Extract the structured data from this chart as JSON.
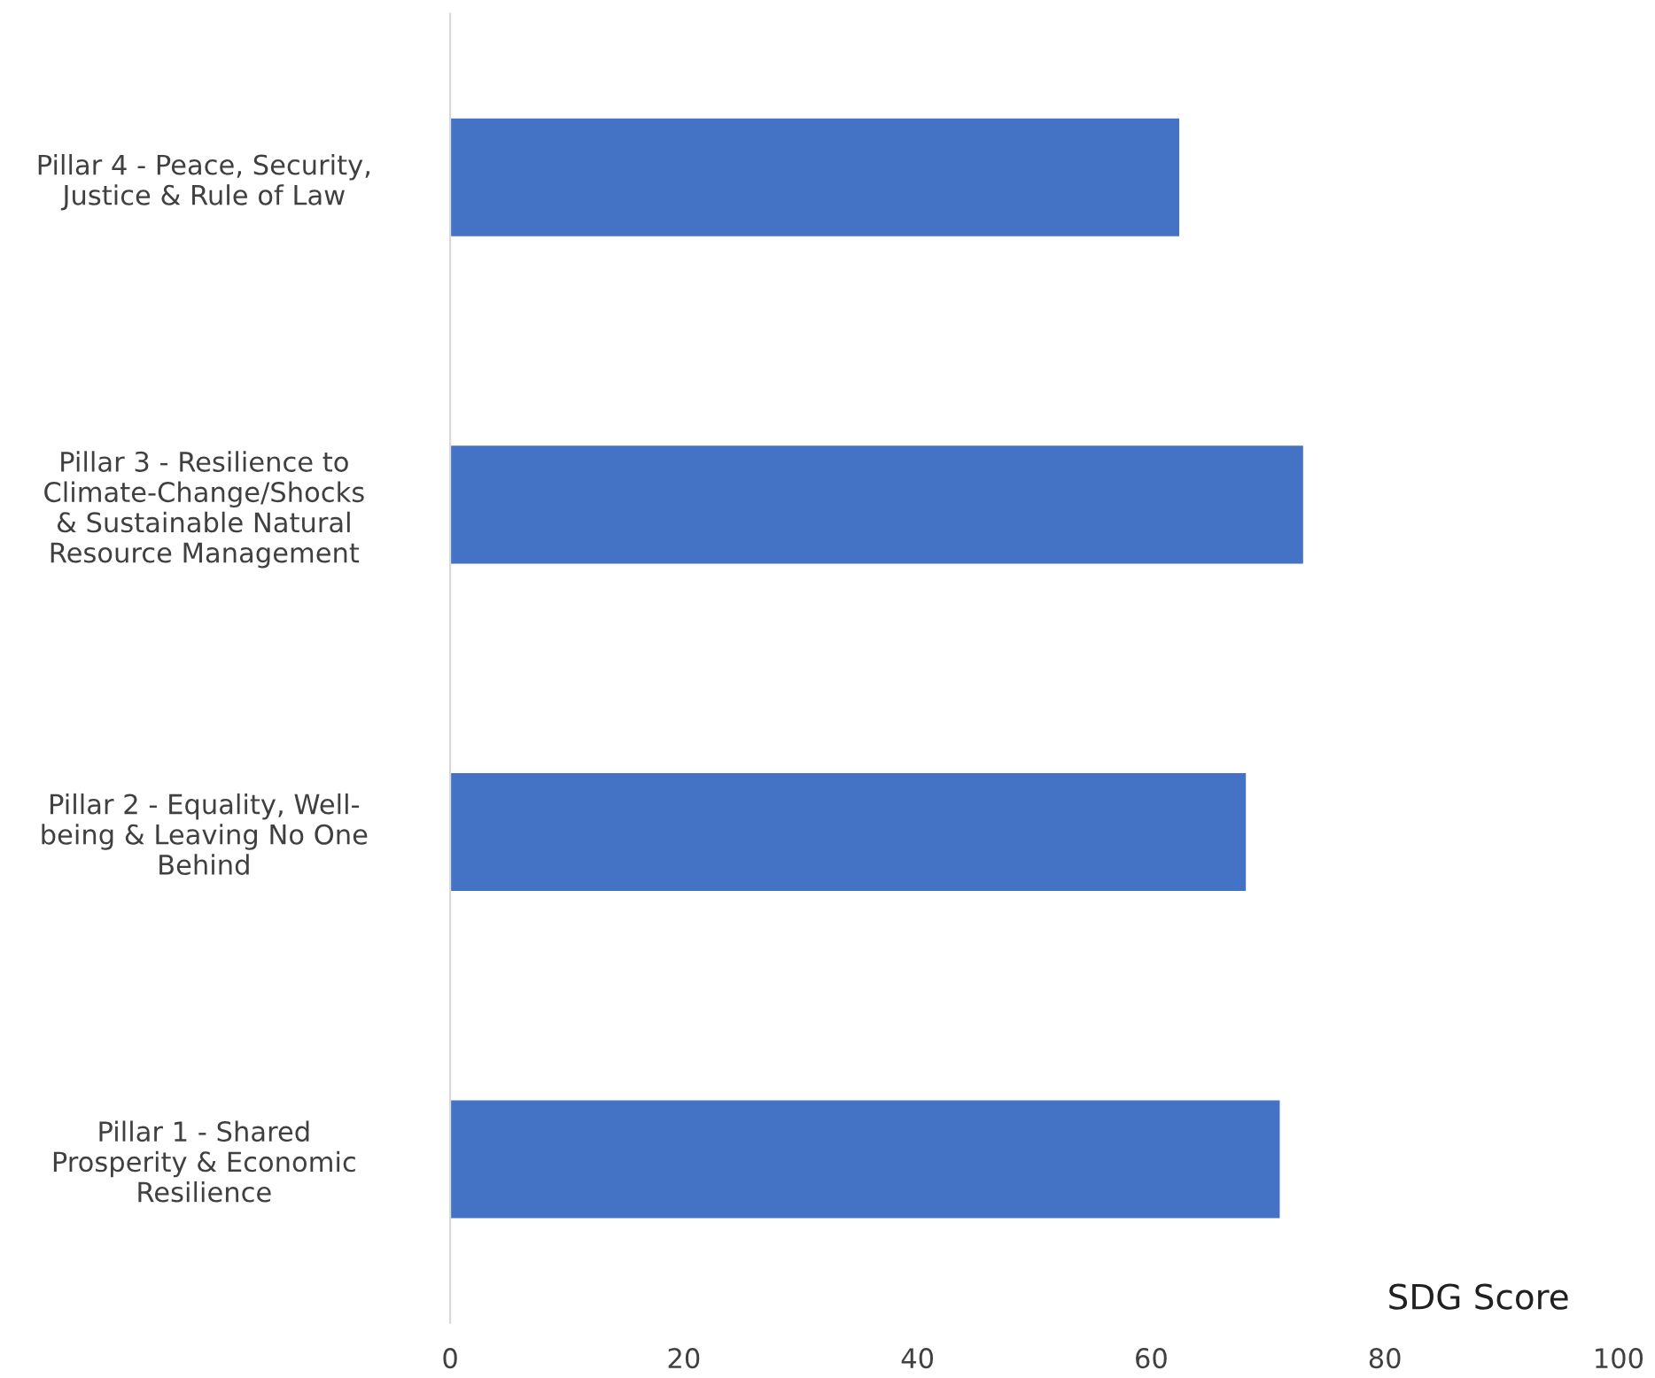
{
  "chart_data": {
    "type": "bar",
    "orientation": "horizontal",
    "xlabel": "SDG Score",
    "categories": [
      "Pillar 4 - Peace, Security,\nJustice & Rule of Law",
      "Pillar 3 - Resilience to\nClimate-Change/Shocks\n& Sustainable Natural\nResource Management",
      "Pillar 2 - Equality, Well-\nbeing & Leaving No One\nBehind",
      "Pillar 1 - Shared\nProsperity & Economic\nResilience"
    ],
    "values": [
      62.4,
      73.0,
      68.1,
      71.0
    ],
    "color": "#4472c4",
    "xlim": [
      0,
      100
    ],
    "xticks": [
      0,
      20,
      40,
      60,
      80,
      100
    ],
    "grid": false,
    "legend": false
  }
}
